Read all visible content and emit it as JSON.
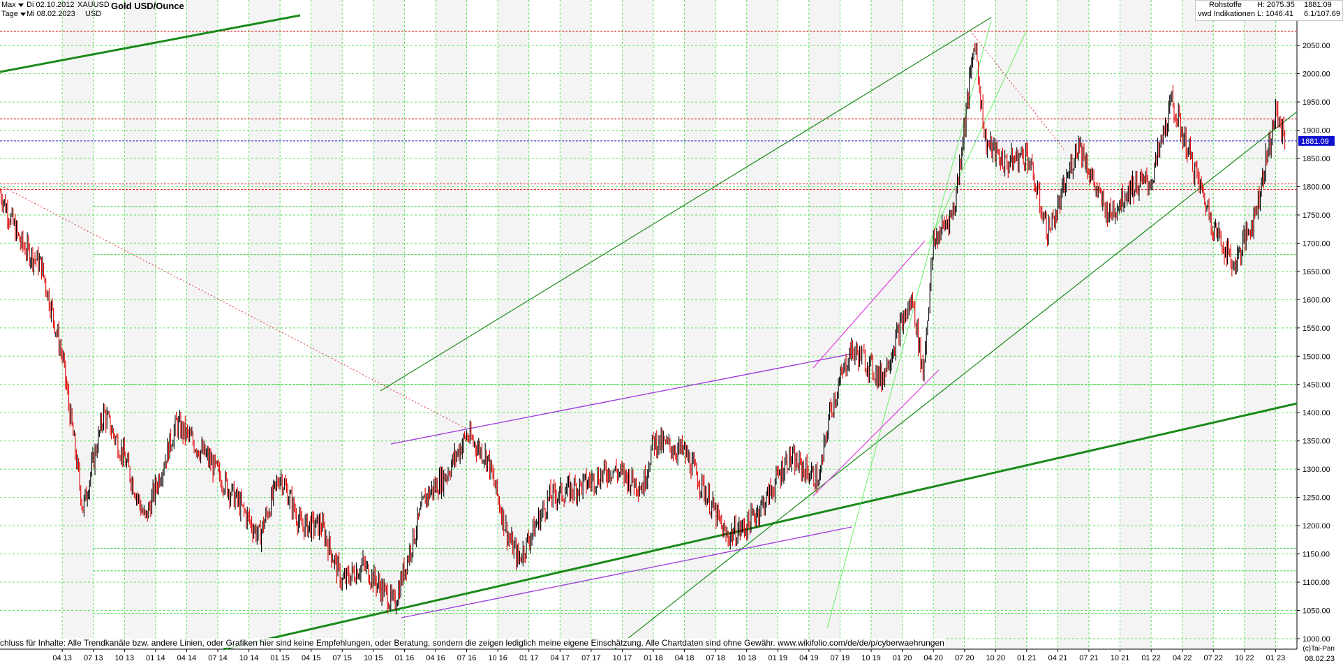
{
  "header": {
    "range_label": "Max",
    "period_label": "Tage",
    "start_date": "Di 02.10.2012",
    "end_date": "Mi 08.02.2023",
    "symbol": "XAUUSD",
    "currency": "USD",
    "title": "Gold USD/Ounce",
    "category": "Rohstoffe",
    "source": "vwd Indikationen",
    "high_label": "H: 2075.35",
    "low_label": "L: 1046.41",
    "last_value": "1881.09",
    "ratio": "6.1/107.69"
  },
  "footer": {
    "disclaimer": "chluss für Inhalte: Alle Trendkanäle bzw. andere Linien, oder Grafiken hier sind keine Empfehlungen, oder Beratung, sondern die zeigen lediglich meine eigene Einschätzung. Alle Chartdaten sind ohne Gewähr.  www.wikifolio.com/de/de/p/cyberwaehrungen",
    "copyright": "(c)Tai-Pan",
    "end_date": "08.02.23"
  },
  "colors": {
    "candle_up": "#000000",
    "candle_down": "#e00000",
    "grid": "#33dd33",
    "trend_green": "#1a8a1a",
    "trend_purple": "#a040e0",
    "trend_magenta": "#e040e0",
    "level_red": "#e03030",
    "level_blue": "#2020c0",
    "price_label_bg": "#1010d0"
  },
  "chart_data": {
    "type": "line",
    "title": "Gold USD/Ounce",
    "xlabel": "",
    "ylabel": "",
    "ylim": [
      1000,
      2100
    ],
    "y_ticks": [
      1000,
      1050,
      1100,
      1150,
      1200,
      1250,
      1300,
      1350,
      1400,
      1450,
      1500,
      1550,
      1600,
      1650,
      1700,
      1750,
      1800,
      1850,
      1900,
      1950,
      2000,
      2050
    ],
    "x_tick_labels": [
      "04 13",
      "07 13",
      "10 13",
      "01 14",
      "04 14",
      "07 14",
      "10 14",
      "01 15",
      "04 15",
      "07 15",
      "10 15",
      "01 16",
      "04 16",
      "07 16",
      "10 16",
      "01 17",
      "04 17",
      "07 17",
      "10 17",
      "01 18",
      "04 18",
      "07 18",
      "10 18",
      "01 19",
      "04 19",
      "07 19",
      "10 19",
      "01 20",
      "04 20",
      "07 20",
      "10 20",
      "01 21",
      "04 21",
      "07 21",
      "10 21",
      "01 22",
      "04 22",
      "07 22",
      "10 22",
      "01 23"
    ],
    "grid": true,
    "last_price": 1881.09,
    "series": [
      {
        "x": [
          "2012-10",
          "2012-12",
          "2013-02",
          "2013-04",
          "2013-06",
          "2013-08",
          "2013-10",
          "2013-12",
          "2014-03",
          "2014-06",
          "2014-09",
          "2014-11",
          "2015-01",
          "2015-03",
          "2015-05",
          "2015-07",
          "2015-09",
          "2015-12",
          "2016-03",
          "2016-05",
          "2016-07",
          "2016-09",
          "2016-11",
          "2016-12",
          "2017-03",
          "2017-06",
          "2017-09",
          "2017-12",
          "2018-01",
          "2018-04",
          "2018-06",
          "2018-08",
          "2018-10",
          "2018-12",
          "2019-02",
          "2019-05",
          "2019-06",
          "2019-08",
          "2019-09",
          "2019-11",
          "2020-01",
          "2020-02",
          "2020-03",
          "2020-04",
          "2020-06",
          "2020-08",
          "2020-09",
          "2020-11",
          "2021-01",
          "2021-03",
          "2021-04",
          "2021-06",
          "2021-08",
          "2021-09",
          "2021-11",
          "2022-01",
          "2022-03",
          "2022-05",
          "2022-07",
          "2022-09",
          "2022-11",
          "2023-01",
          "2023-02"
        ],
        "values": [
          1790,
          1700,
          1660,
          1500,
          1230,
          1400,
          1320,
          1210,
          1380,
          1320,
          1240,
          1180,
          1290,
          1200,
          1200,
          1100,
          1130,
          1060,
          1250,
          1290,
          1360,
          1320,
          1180,
          1140,
          1250,
          1270,
          1300,
          1270,
          1350,
          1330,
          1260,
          1180,
          1200,
          1250,
          1320,
          1280,
          1400,
          1510,
          1500,
          1460,
          1560,
          1600,
          1470,
          1700,
          1760,
          2060,
          1880,
          1840,
          1860,
          1720,
          1760,
          1880,
          1780,
          1750,
          1800,
          1810,
          1950,
          1840,
          1730,
          1660,
          1750,
          1930,
          1881
        ]
      }
    ]
  }
}
